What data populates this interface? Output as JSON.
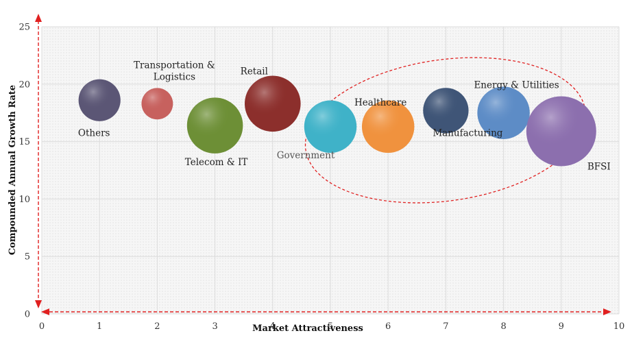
{
  "chart_data": {
    "type": "scatter",
    "subtype": "bubble",
    "xlabel": "Market Attractiveness",
    "ylabel": "Compounded Annual Growth Rate",
    "xlim": [
      0,
      10
    ],
    "ylim": [
      0,
      25
    ],
    "x_ticks": [
      "0",
      "1",
      "2",
      "3",
      "4",
      "5",
      "6",
      "7",
      "8",
      "9",
      "10"
    ],
    "y_ticks": [
      "0",
      "5",
      "10",
      "15",
      "20",
      "25"
    ],
    "grid": true,
    "legend": "none",
    "points": [
      {
        "label": "Others",
        "x": 1,
        "y": 18.6,
        "size": 0.6,
        "color": "#5b5675"
      },
      {
        "label": "Transportation & Logistics",
        "label_lines": [
          "Transportation &",
          "Logistics"
        ],
        "x": 2,
        "y": 18.3,
        "size": 0.45,
        "color": "#c7615e"
      },
      {
        "label": "Telecom & IT",
        "x": 3,
        "y": 16.4,
        "size": 0.8,
        "color": "#6d8f36"
      },
      {
        "label": "Retail",
        "x": 4,
        "y": 18.3,
        "size": 0.8,
        "color": "#8c2f2c"
      },
      {
        "label": "Government",
        "x": 5,
        "y": 16.3,
        "size": 0.75,
        "color": "#3fb2c8"
      },
      {
        "label": "Healthcare",
        "x": 6,
        "y": 16.3,
        "size": 0.75,
        "color": "#f0923e"
      },
      {
        "label": "Manufacturing",
        "x": 7,
        "y": 17.7,
        "size": 0.65,
        "color": "#3f5577"
      },
      {
        "label": "Energy & Utilities",
        "x": 8,
        "y": 17.5,
        "size": 0.75,
        "color": "#5d8cc6"
      },
      {
        "label": "BFSI",
        "x": 9,
        "y": 15.9,
        "size": 1.0,
        "color": "#8c6fae"
      }
    ],
    "highlight_color": "#e02020",
    "axis_arrow_color": "#e02020",
    "bubble_highlight_color": "#ffffff"
  }
}
